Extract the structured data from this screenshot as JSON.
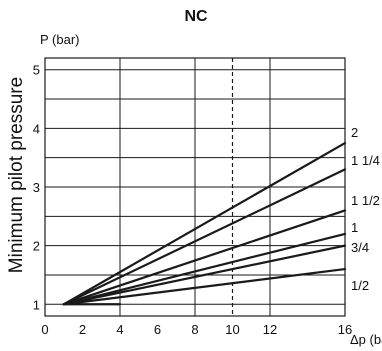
{
  "chart_data": {
    "type": "line",
    "title": "NC",
    "ylabel": "Minimum pilot pressure",
    "y_axis_title": "P (bar)",
    "x_axis_title": "Δp (bar)",
    "xlim": [
      0,
      16
    ],
    "ylim": [
      0.8,
      5.2
    ],
    "xticks": [
      0,
      2,
      4,
      6,
      8,
      10,
      12,
      16
    ],
    "yticks": [
      1,
      2,
      3,
      4,
      5
    ],
    "x_gridlines": [
      0,
      4,
      8,
      12,
      16
    ],
    "y_gridlines": [
      1,
      1.5,
      2,
      2.5,
      3,
      3.5,
      4,
      4.5,
      5
    ],
    "reference_line_x": 10,
    "grid": true,
    "series": [
      {
        "name": "2",
        "x": [
          1,
          16
        ],
        "y": [
          1.0,
          3.75
        ]
      },
      {
        "name": "1 1/4",
        "x": [
          1,
          16
        ],
        "y": [
          1.0,
          3.3
        ]
      },
      {
        "name": "1 1/2",
        "x": [
          1,
          16
        ],
        "y": [
          1.0,
          2.6
        ]
      },
      {
        "name": "1",
        "x": [
          1,
          16
        ],
        "y": [
          1.0,
          2.2
        ]
      },
      {
        "name": "3/4",
        "x": [
          1,
          16
        ],
        "y": [
          1.0,
          2.0
        ]
      },
      {
        "name": "1/2",
        "x": [
          1,
          16
        ],
        "y": [
          1.0,
          1.6
        ]
      }
    ],
    "flat_segment": {
      "x": [
        1,
        4
      ],
      "y": [
        1.0,
        1.0
      ]
    }
  }
}
